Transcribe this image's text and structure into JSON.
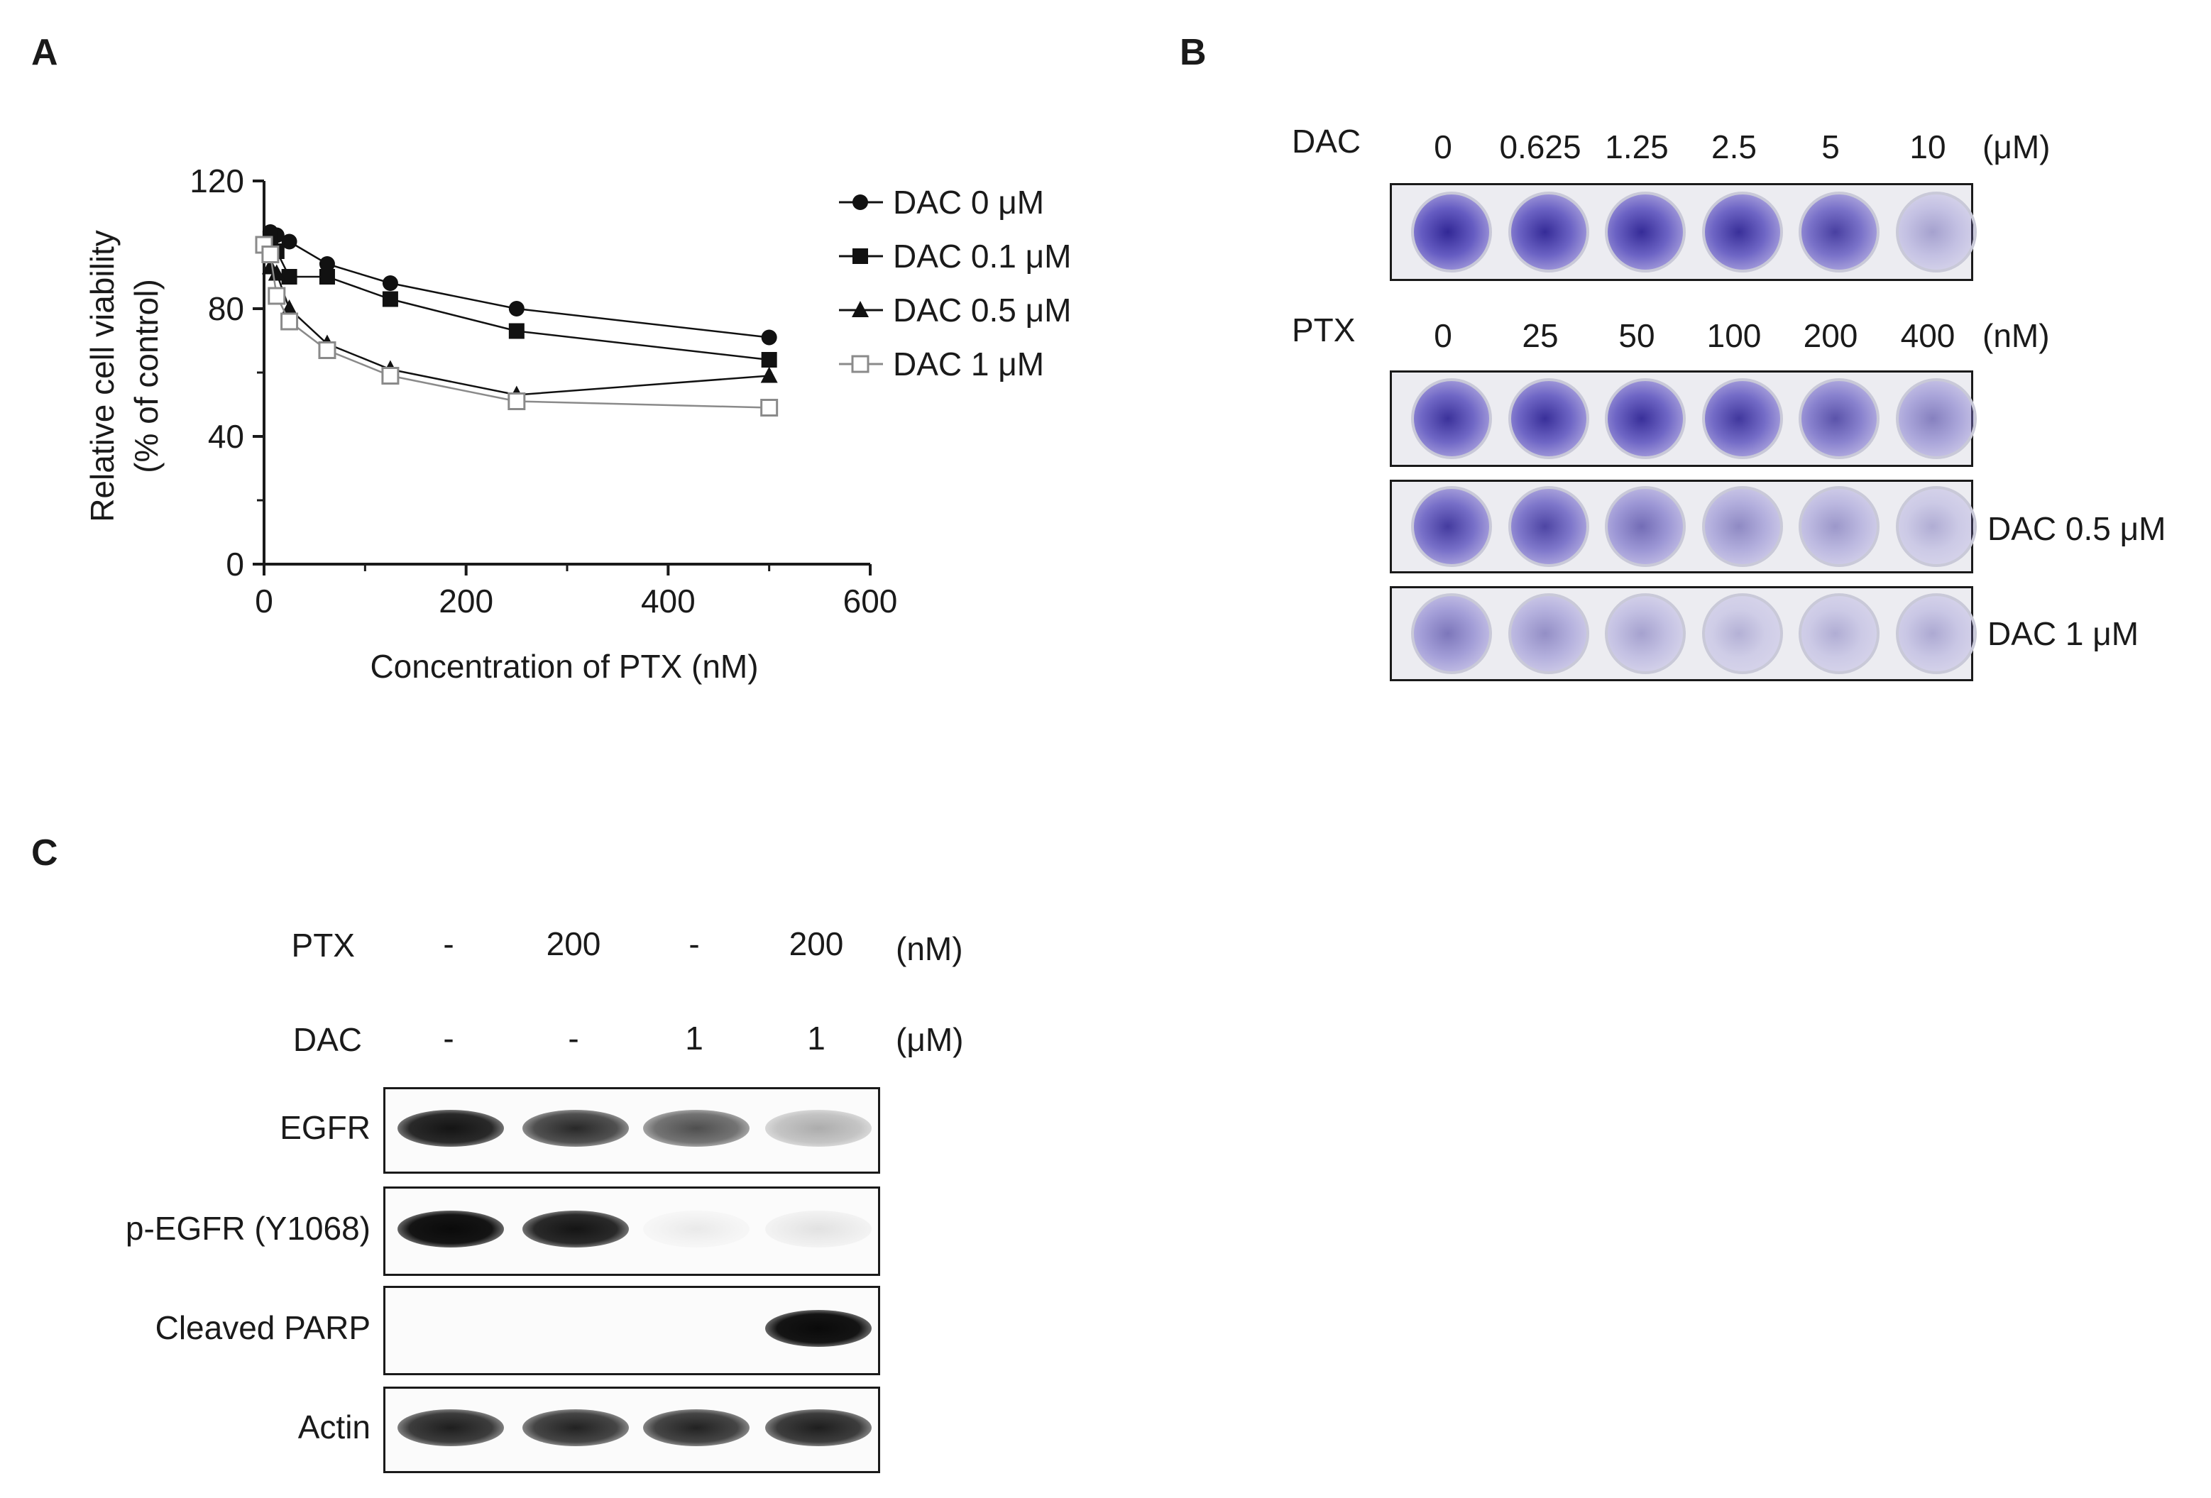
{
  "panels": {
    "a": "A",
    "b": "B",
    "c": "C"
  },
  "chart_data": {
    "type": "line",
    "title": "",
    "xlabel": "Concentration of PTX (nM)",
    "ylabel_line1": "Relative cell viability",
    "ylabel_line2": "(% of control)",
    "xlim": [
      0,
      600
    ],
    "ylim": [
      0,
      120
    ],
    "x_ticks": [
      "0",
      "200",
      "400",
      "600"
    ],
    "y_ticks": [
      "0",
      "40",
      "80",
      "120"
    ],
    "legend_position": "right",
    "x": [
      0,
      6.25,
      12.5,
      25,
      62.5,
      125,
      250,
      500
    ],
    "series": [
      {
        "name": "DAC 0 μM",
        "marker": "circle",
        "color": "#111111",
        "values": [
          100,
          104,
          103,
          101,
          94,
          88,
          80,
          71
        ]
      },
      {
        "name": "DAC 0.1 μM",
        "marker": "square",
        "color": "#111111",
        "values": [
          100,
          102,
          98,
          90,
          90,
          83,
          73,
          64
        ]
      },
      {
        "name": "DAC 0.5 μM",
        "marker": "triangle",
        "color": "#111111",
        "values": [
          100,
          93,
          91,
          80,
          69,
          61,
          53,
          59
        ]
      },
      {
        "name": "DAC 1 μM",
        "marker": "open-square",
        "color": "#8a8a8a",
        "values": [
          100,
          97,
          84,
          76,
          67,
          59,
          51,
          49
        ]
      }
    ]
  },
  "panel_b": {
    "dac_row_label": "DAC",
    "dac_doses": [
      "0",
      "0.625",
      "1.25",
      "2.5",
      "5",
      "10"
    ],
    "dac_unit": "(μM)",
    "ptx_row_label": "PTX",
    "ptx_doses": [
      "0",
      "25",
      "50",
      "100",
      "200",
      "400"
    ],
    "ptx_unit": "(nM)",
    "plate_side_labels": [
      "DAC 0.5 μM",
      "DAC 1 μM"
    ],
    "stain_color": "#4a3fa8",
    "dac_plate_intensity": [
      0.92,
      0.88,
      0.88,
      0.86,
      0.78,
      0.28
    ],
    "ptx_plate_intensity": [
      0.85,
      0.86,
      0.86,
      0.82,
      0.68,
      0.45
    ],
    "dac05_plate_intensity": [
      0.8,
      0.75,
      0.55,
      0.4,
      0.33,
      0.22
    ],
    "dac1_plate_intensity": [
      0.5,
      0.38,
      0.28,
      0.2,
      0.22,
      0.24
    ]
  },
  "panel_c": {
    "ptx_label": "PTX",
    "ptx_values": [
      "-",
      "200",
      "-",
      "200"
    ],
    "ptx_unit": "(nM)",
    "dac_label": "DAC",
    "dac_values": [
      "-",
      "-",
      "1",
      "1"
    ],
    "dac_unit": "(μM)",
    "blots": [
      {
        "label": "EGFR",
        "intensity": [
          0.95,
          0.85,
          0.75,
          0.45
        ]
      },
      {
        "label": "p-EGFR (Y1068)",
        "intensity": [
          1.0,
          0.95,
          0.12,
          0.18
        ]
      },
      {
        "label": "Cleaved PARP",
        "intensity": [
          0.0,
          0.0,
          0.0,
          1.0
        ]
      },
      {
        "label": "Actin",
        "intensity": [
          0.9,
          0.88,
          0.88,
          0.9
        ]
      }
    ]
  }
}
